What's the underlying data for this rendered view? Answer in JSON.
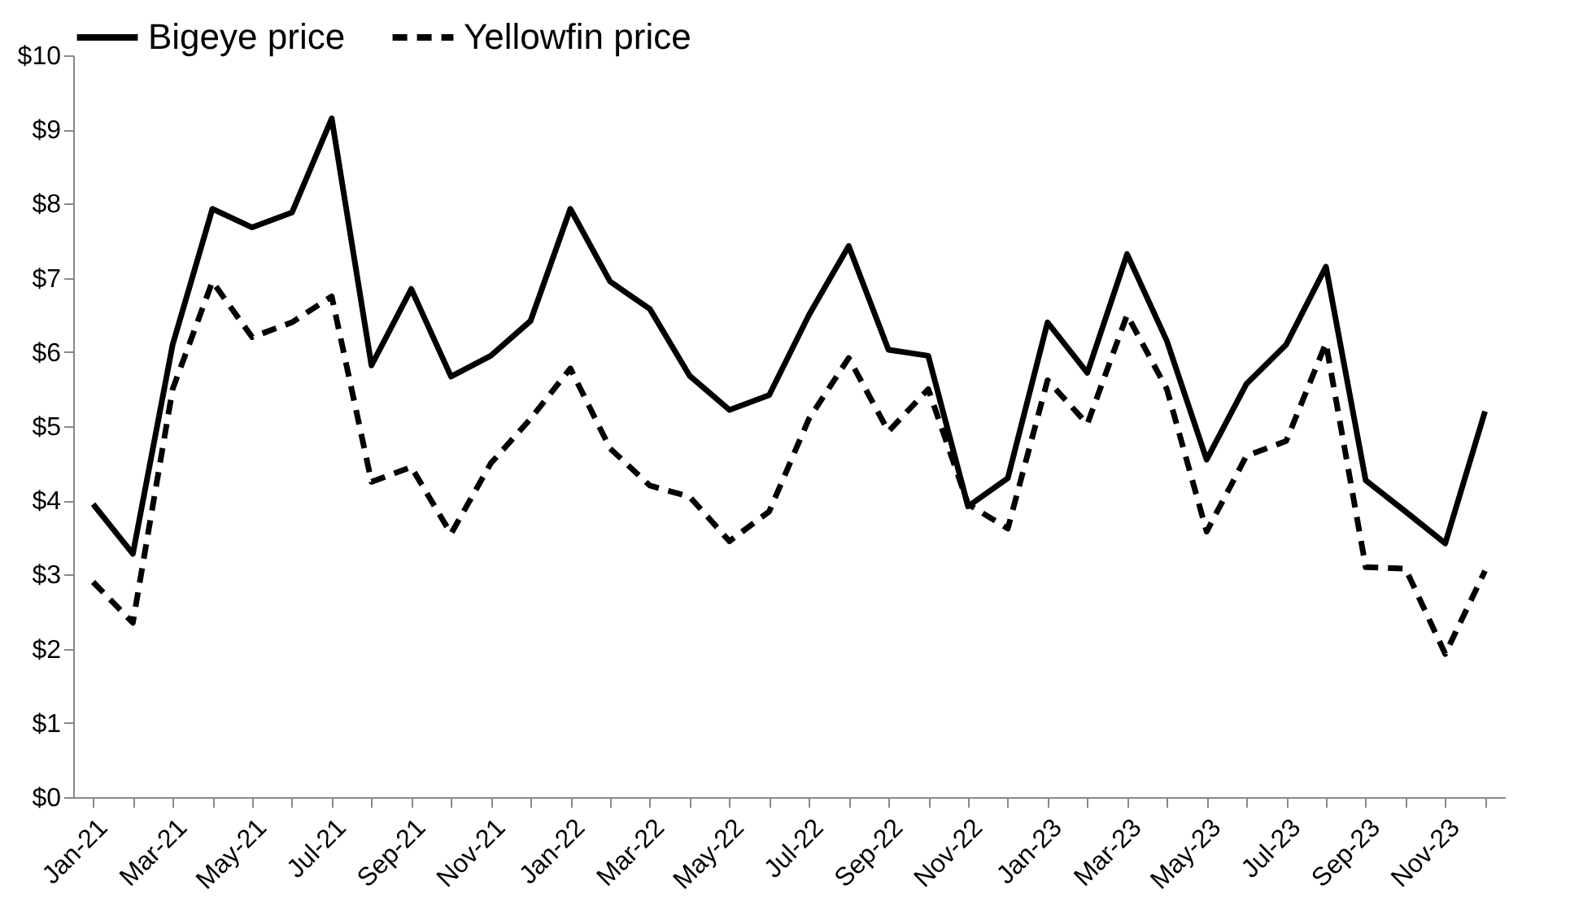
{
  "chart_data": {
    "type": "line",
    "categories": [
      "Jan-21",
      null,
      "Mar-21",
      null,
      "May-21",
      null,
      "Jul-21",
      null,
      "Sep-21",
      null,
      "Nov-21",
      null,
      "Jan-22",
      null,
      "Mar-22",
      null,
      "May-22",
      null,
      "Jul-22",
      null,
      "Sep-22",
      null,
      "Nov-22",
      null,
      "Jan-23",
      null,
      "Mar-23",
      null,
      "May-23",
      null,
      "Jul-23",
      null,
      "Sep-23",
      null,
      "Nov-23",
      null
    ],
    "series": [
      {
        "name": "Bigeye price",
        "color": "#000000",
        "line_style": "solid",
        "values": [
          3.95,
          3.28,
          6.1,
          7.93,
          7.68,
          7.88,
          9.15,
          5.82,
          6.85,
          5.67,
          5.95,
          6.42,
          7.93,
          6.95,
          6.58,
          5.68,
          5.22,
          5.42,
          6.5,
          7.43,
          6.03,
          5.95,
          3.92,
          4.3,
          6.4,
          5.72,
          7.32,
          6.15,
          4.55,
          5.57,
          6.1,
          7.15,
          4.27,
          3.85,
          3.42,
          5.2
        ]
      },
      {
        "name": "Yellowfin price",
        "color": "#000000",
        "line_style": "dashed",
        "values": [
          2.9,
          2.35,
          5.5,
          6.95,
          6.2,
          6.4,
          6.75,
          4.25,
          4.45,
          3.55,
          4.5,
          5.1,
          5.78,
          4.7,
          4.2,
          4.05,
          3.45,
          3.85,
          5.1,
          5.92,
          4.93,
          5.5,
          3.95,
          3.62,
          5.62,
          5.03,
          6.5,
          5.5,
          3.58,
          4.6,
          4.8,
          6.12,
          3.1,
          3.08,
          1.93,
          3.05
        ]
      }
    ],
    "ylim": [
      0,
      10
    ],
    "yticks": [
      {
        "value": 0,
        "label": "$0"
      },
      {
        "value": 1,
        "label": "$1"
      },
      {
        "value": 2,
        "label": "$2"
      },
      {
        "value": 3,
        "label": "$3"
      },
      {
        "value": 4,
        "label": "$4"
      },
      {
        "value": 5,
        "label": "$5"
      },
      {
        "value": 6,
        "label": "$6"
      },
      {
        "value": 7,
        "label": "$7"
      },
      {
        "value": 8,
        "label": "$8"
      },
      {
        "value": 9,
        "label": "$9"
      },
      {
        "value": 10,
        "label": "$10"
      }
    ],
    "grid": false,
    "legend": "top"
  }
}
